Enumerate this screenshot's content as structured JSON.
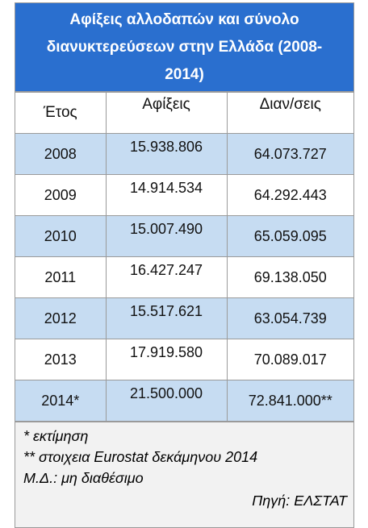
{
  "table": {
    "title": "Αφίξεις αλλοδαπών και σύνολο διανυκτερεύσεων στην Ελλάδα (2008-2014)",
    "header": [
      "Έτος",
      "Αφίξεις",
      "Διαν/σεις"
    ],
    "rows": [
      [
        "2008",
        "15.938.806",
        "64.073.727"
      ],
      [
        "2009",
        "14.914.534",
        "64.292.443"
      ],
      [
        "2010",
        "15.007.490",
        "65.059.095"
      ],
      [
        "2011",
        "16.427.247",
        "69.138.050"
      ],
      [
        "2012",
        "15.517.621",
        "63.054.739"
      ],
      [
        "2013",
        "17.919.580",
        "70.089.017"
      ],
      [
        "2014*",
        "21.500.000",
        "72.841.000**"
      ]
    ]
  },
  "notes": [
    "* εκτίμηση",
    "** στοιχεια Eurostat δεκάμηνου 2014",
    "Μ.Δ.: μη διαθέσιμο"
  ],
  "source": "Πηγή: ΕΛΣΤΑΤ"
}
